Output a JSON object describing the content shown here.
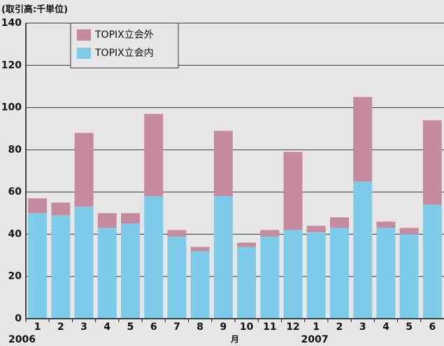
{
  "chart_data": {
    "type": "stacked_bar",
    "unit_label": "(取引高:千単位)",
    "categories": [
      "1",
      "2",
      "3",
      "4",
      "5",
      "6",
      "7",
      "8",
      "9",
      "10",
      "11",
      "12",
      "1",
      "2",
      "3",
      "4",
      "5",
      "6"
    ],
    "years": [
      "2006",
      "2007"
    ],
    "x_label": "月",
    "series": [
      {
        "name": "TOPIX立会内",
        "color": "#7dcbe8",
        "values": [
          50,
          49,
          53,
          43,
          45,
          58,
          39,
          32,
          58,
          34,
          39,
          42,
          41,
          43,
          65,
          43,
          40,
          54
        ]
      },
      {
        "name": "TOPIX立会外",
        "color": "#c58aa0",
        "values": [
          7,
          6,
          35,
          7,
          5,
          39,
          3,
          2,
          31,
          2,
          3,
          37,
          3,
          5,
          40,
          3,
          3,
          40
        ]
      }
    ],
    "ylim": [
      0,
      140
    ],
    "yticks": [
      0,
      20,
      40,
      60,
      80,
      100,
      120,
      140
    ],
    "grid": true
  }
}
